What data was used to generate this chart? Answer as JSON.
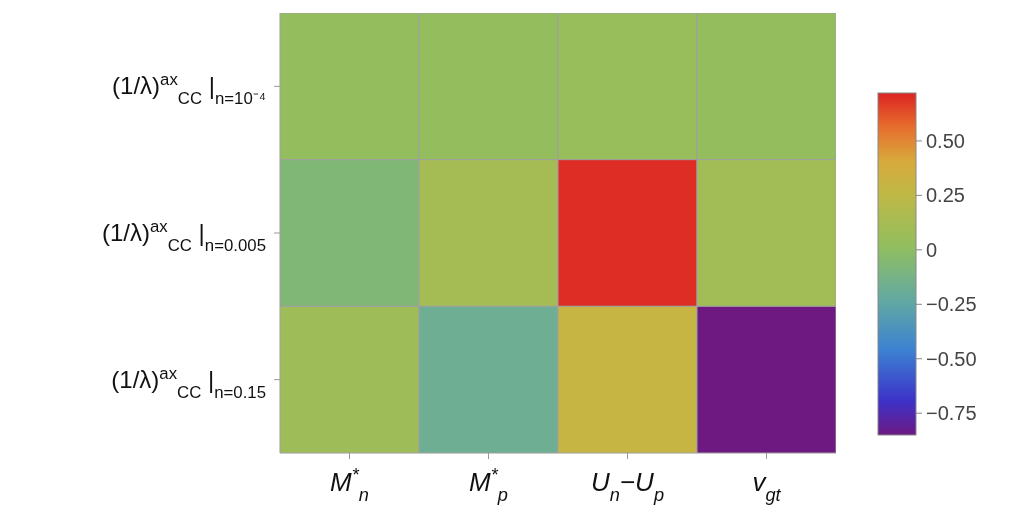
{
  "chart_data": {
    "type": "heatmap",
    "categories": [
      "M$^{*}$$_{n}$",
      "M$^{*}$$_{p}$",
      "U$_{n}$−U$_{p}$",
      "v$_{gt}$"
    ],
    "y_categories": [
      "(1/λ)$^{ax}$$_{CC}$ |$_{n=10⁻⁴}$",
      "(1/λ)$^{ax}$$_{CC}$ |$_{n=0.005}$",
      "(1/λ)$^{ax}$$_{CC}$ |$_{n=0.15}$"
    ],
    "cells": [
      [
        0.03,
        0.03,
        0.05,
        0.03
      ],
      [
        -0.07,
        0.12,
        0.7,
        0.1
      ],
      [
        0.08,
        -0.17,
        0.3,
        -0.85
      ]
    ],
    "clim": [
      -0.85,
      0.72
    ],
    "cticks": [
      {
        "value": 0.5,
        "label": "0.50"
      },
      {
        "value": 0.25,
        "label": "0.25"
      },
      0,
      {
        "value": -0.25,
        "label": "−0.25"
      },
      {
        "value": -0.5,
        "label": "−0.50"
      },
      {
        "value": -0.75,
        "label": "−0.75"
      }
    ],
    "grid": false
  }
}
